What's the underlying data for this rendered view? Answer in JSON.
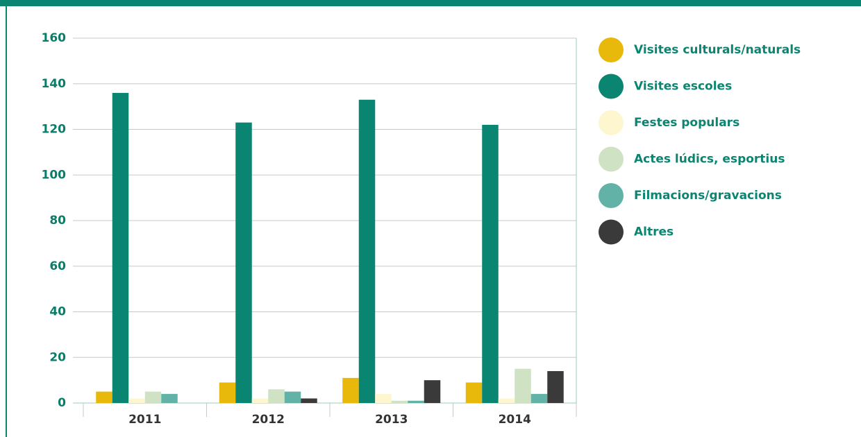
{
  "chart_data": {
    "type": "bar",
    "categories": [
      "2011",
      "2012",
      "2013",
      "2014"
    ],
    "series": [
      {
        "name": "Visites culturals/naturals",
        "color": "#e8b80a",
        "values": [
          5,
          9,
          11,
          9
        ]
      },
      {
        "name": "Visites escoles",
        "color": "#0a8571",
        "values": [
          136,
          123,
          133,
          122
        ]
      },
      {
        "name": "Festes populars",
        "color": "#fdf6cf",
        "values": [
          2,
          2,
          4,
          2
        ]
      },
      {
        "name": "Actes lúdics, esportius",
        "color": "#cfe3c4",
        "values": [
          5,
          6,
          1,
          15
        ]
      },
      {
        "name": "Filmacions/gravacions",
        "color": "#62b2a8",
        "values": [
          4,
          5,
          1,
          4
        ]
      },
      {
        "name": "Altres",
        "color": "#3a3a3a",
        "values": [
          0,
          2,
          10,
          14
        ]
      }
    ],
    "ylim": [
      0,
      160
    ],
    "yticks": [
      0,
      20,
      40,
      60,
      80,
      100,
      120,
      140,
      160
    ],
    "grid": true,
    "legend": "right"
  }
}
